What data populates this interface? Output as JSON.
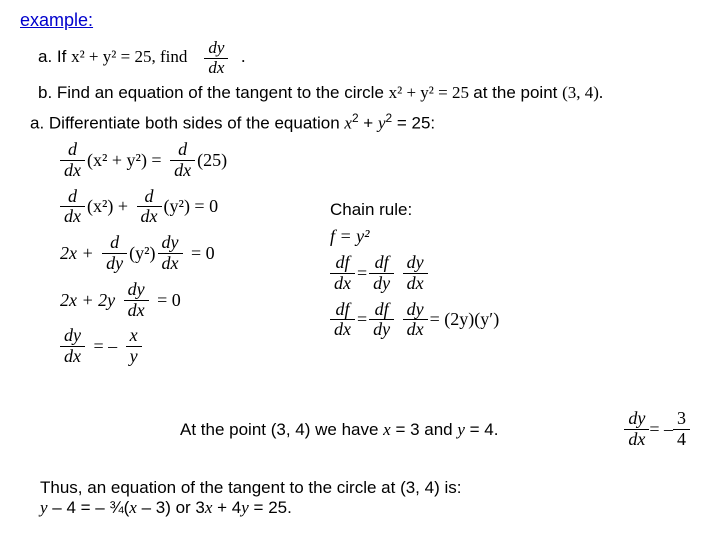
{
  "exampleLabel": "example:",
  "problemA_prefix": "a. If ",
  "problemA_eq": "x² + y² = 25, find",
  "problemA_frac_num": "dy",
  "problemA_frac_den": "dx",
  "problemA_suffix": ".",
  "problemB": "b. Find an equation of the tangent to the circle x² + y² = 25 at the point (3, 4).",
  "stepA_intro_before": "a. Differentiate both sides of the equation ",
  "stepA_eq": "x",
  "stepA_eq2": " + ",
  "stepA_eq3": "y",
  "stepA_eq4": " = 25:",
  "d": "d",
  "dx": "dx",
  "dy": "dy",
  "df": "df",
  "eq1_left": "(x² + y²) =",
  "eq1_right": "(25)",
  "eq2_left1": "(x²) +",
  "eq2_left2": "(y²) = 0",
  "eq3_pre": "2x +",
  "eq3_mid": "(y²)",
  "eq3_post": "= 0",
  "eq4_pre": "2x + 2y",
  "eq4_post": "= 0",
  "eq5_frac_num": "dy",
  "eq5_frac_den": "dx",
  "eq5_eq": "= –",
  "eq5_rhs_num": "x",
  "eq5_rhs_den": "y",
  "chain_title": "Chain rule:",
  "chain_f": "f  =  y²",
  "chain_eq": " = ",
  "chain_dfdy": "df",
  "chain_dydx": "dy",
  "chain_result": " = (2y)(y′)",
  "pointLine_before": "At the point (3, 4) we have ",
  "pointLine_x": "x",
  "pointLine_mid": " = 3 and ",
  "pointLine_y": "y",
  "pointLine_after": " = 4.",
  "result_lhs_num": "dy",
  "result_lhs_den": "dx",
  "result_eq": " = –",
  "result_rhs_num": "3",
  "result_rhs_den": "4",
  "footer1": "Thus, an equation of the tangent to the circle at (3, 4) is:",
  "footer2_before": "y",
  "footer2_a": " – 4 = – ¾(",
  "footer2_x": "x",
  "footer2_b": " – 3)  or  3",
  "footer2_c": " + 4",
  "footer2_d": " = 25."
}
